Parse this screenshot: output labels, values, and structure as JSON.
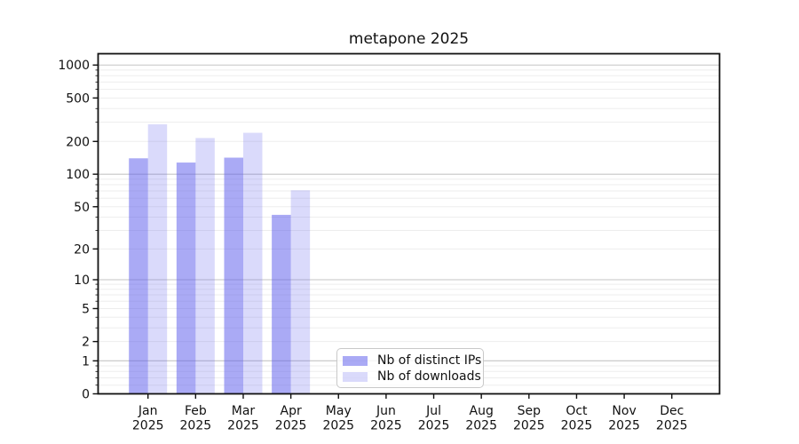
{
  "figure": {
    "title": "metapone 2025"
  },
  "legend": {
    "items": [
      {
        "label": "Nb of distinct IPs",
        "series_key": "distinct-ips"
      },
      {
        "label": "Nb of downloads",
        "series_key": "downloads"
      }
    ]
  },
  "colors": {
    "bar_distinct_ips": "rgba(85,85,235,0.5)",
    "bar_downloads": "rgba(85,85,235,0.22)",
    "bar_distinct_ips_on_white": "#aaaaf5",
    "bar_downloads_on_white": "#d9d9f8",
    "grid_major": "#c6c6c6",
    "grid_minor": "#ededed",
    "axis": "#111111"
  },
  "chart_data": {
    "type": "bar",
    "title": "metapone 2025",
    "categories": [
      "Jan 2025",
      "Feb 2025",
      "Mar 2025",
      "Apr 2025",
      "May 2025",
      "Jun 2025",
      "Jul 2025",
      "Aug 2025",
      "Sep 2025",
      "Oct 2025",
      "Nov 2025",
      "Dec 2025"
    ],
    "series": [
      {
        "name": "Nb of distinct IPs",
        "values": [
          140,
          128,
          142,
          42,
          null,
          null,
          null,
          null,
          null,
          null,
          null,
          null
        ]
      },
      {
        "name": "Nb of downloads",
        "values": [
          287,
          215,
          240,
          71,
          null,
          null,
          null,
          null,
          null,
          null,
          null,
          null
        ]
      }
    ],
    "y_axis": {
      "scale": "log10(value+1)",
      "ticks": [
        0,
        1,
        2,
        5,
        10,
        20,
        50,
        100,
        200,
        500,
        1000
      ],
      "range": [
        0,
        1280
      ],
      "major_gridlines_at": [
        1,
        10,
        100,
        1000
      ]
    },
    "x_axis": {
      "tick_label_lines": 2
    },
    "grid": {
      "horizontal": true,
      "minor": true,
      "vertical": false
    },
    "legend_position": "lower center, inside plot",
    "bar_layout": "two bars per month, side by side, distinct IPs left / downloads right"
  }
}
